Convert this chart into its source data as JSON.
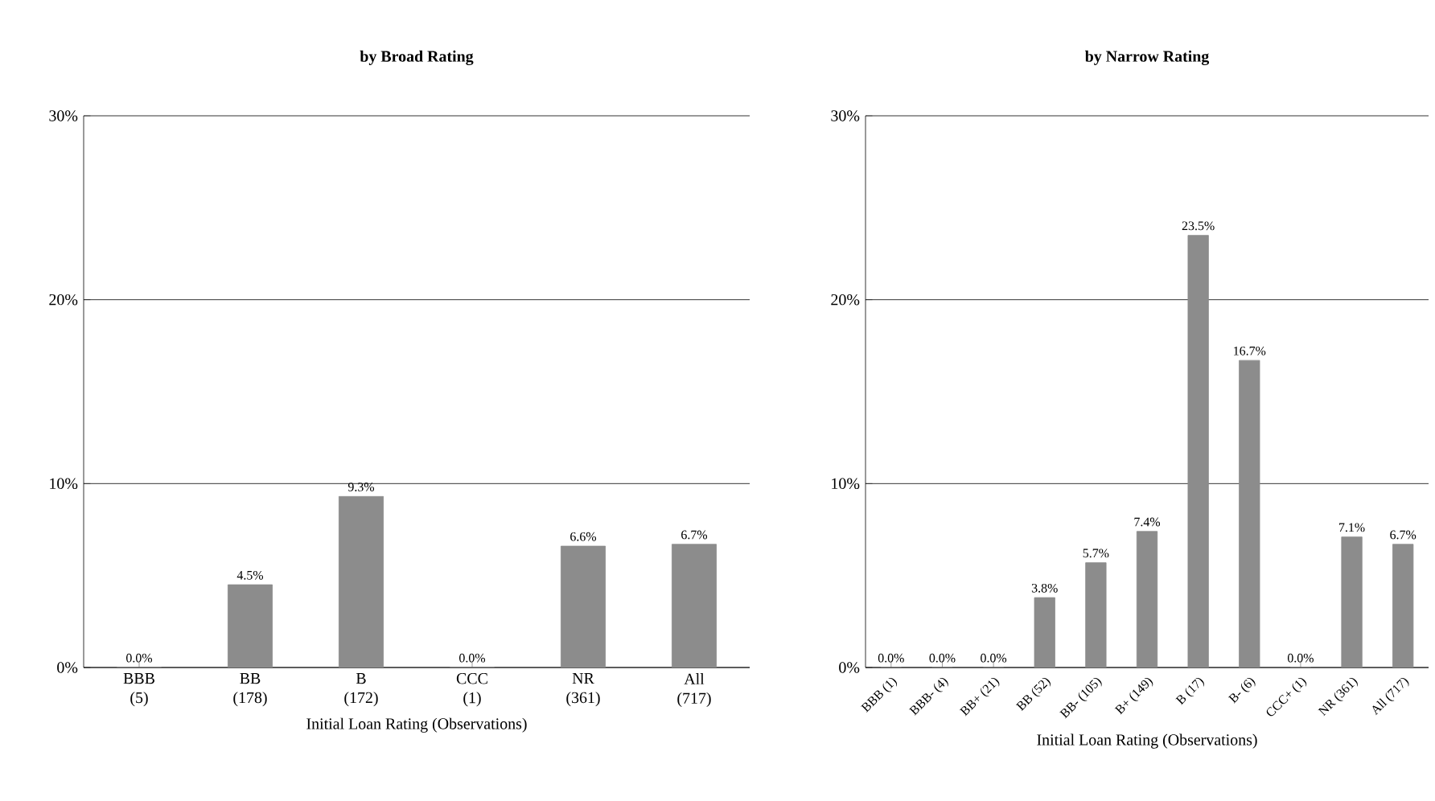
{
  "chart_data": [
    {
      "type": "bar",
      "title": "by Broad Rating",
      "xlabel": "Initial Loan Rating (Observations)",
      "categories": [
        "BBB (5)",
        "BB (178)",
        "B (172)",
        "CCC (1)",
        "NR (361)",
        "All (717)"
      ],
      "values": [
        0,
        4.5,
        9.3,
        0,
        6.6,
        6.7
      ],
      "value_labels": [
        "0.0%",
        "4.5%",
        "9.3%",
        "0.0%",
        "6.6%",
        "6.7%"
      ],
      "color": "#8c8c8c",
      "ylim": [
        0,
        30
      ],
      "yticks": [
        {
          "value": 0,
          "label": "0%"
        },
        {
          "value": 10,
          "label": "10%"
        },
        {
          "value": 20,
          "label": "20%"
        },
        {
          "value": 30,
          "label": "30%"
        }
      ],
      "grid": "y"
    },
    {
      "type": "bar",
      "title": "by Narrow Rating",
      "xlabel": "Initial Loan Rating (Observations)",
      "categories": [
        "BBB (1)",
        "BBB- (4)",
        "BB+ (21)",
        "BB (52)",
        "BB- (105)",
        "B+ (149)",
        "B (17)",
        "B- (6)",
        "CCC+ (1)",
        "NR (361)",
        "All (717)"
      ],
      "values": [
        0,
        0,
        0,
        3.8,
        5.7,
        7.4,
        23.5,
        16.7,
        0,
        7.1,
        6.7
      ],
      "value_labels": [
        "0.0%",
        "0.0%",
        "0.0%",
        "3.8%",
        "5.7%",
        "7.4%",
        "23.5%",
        "16.7%",
        "0.0%",
        "7.1%",
        "6.7%"
      ],
      "color": "#8c8c8c",
      "ylim": [
        0,
        30
      ],
      "yticks": [
        {
          "value": 0,
          "label": "0%"
        },
        {
          "value": 10,
          "label": "10%"
        },
        {
          "value": 20,
          "label": "20%"
        },
        {
          "value": 30,
          "label": "30%"
        }
      ],
      "grid": "y"
    }
  ]
}
